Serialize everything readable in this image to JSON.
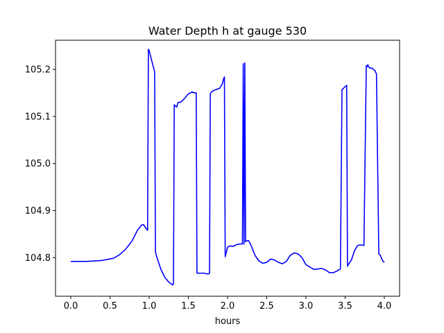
{
  "chart_data": {
    "type": "line",
    "title": "Water Depth h at gauge 530",
    "xlabel": "hours",
    "ylabel": "",
    "xlim": [
      -0.195,
      4.195
    ],
    "ylim": [
      104.718,
      105.262
    ],
    "x_ticks": [
      0.0,
      0.5,
      1.0,
      1.5,
      2.0,
      2.5,
      3.0,
      3.5,
      4.0
    ],
    "x_tick_labels": [
      "0.0",
      "0.5",
      "1.0",
      "1.5",
      "2.0",
      "2.5",
      "3.0",
      "3.5",
      "4.0"
    ],
    "y_ticks": [
      104.8,
      104.9,
      105.0,
      105.1,
      105.2
    ],
    "y_tick_labels": [
      "104.8",
      "104.9",
      "105.0",
      "105.1",
      "105.2"
    ],
    "grid": false,
    "series": [
      {
        "color": "#0000ff",
        "x": [
          0.0,
          0.2,
          0.4,
          0.55,
          0.62,
          0.7,
          0.78,
          0.85,
          0.9,
          0.93,
          0.96,
          0.98,
          0.99,
          1.0,
          1.03,
          1.07,
          1.08,
          1.1,
          1.15,
          1.2,
          1.25,
          1.3,
          1.31,
          1.32,
          1.33,
          1.35,
          1.37,
          1.4,
          1.45,
          1.5,
          1.55,
          1.58,
          1.6,
          1.61,
          1.65,
          1.7,
          1.75,
          1.77,
          1.78,
          1.8,
          1.82,
          1.85,
          1.9,
          1.93,
          1.95,
          1.96,
          1.97,
          2.0,
          2.03,
          2.07,
          2.12,
          2.16,
          2.19,
          2.2,
          2.21,
          2.22,
          2.23,
          2.25,
          2.27,
          2.3,
          2.35,
          2.4,
          2.45,
          2.5,
          2.55,
          2.6,
          2.65,
          2.7,
          2.75,
          2.8,
          2.85,
          2.9,
          2.95,
          3.0,
          3.05,
          3.1,
          3.15,
          3.2,
          3.25,
          3.3,
          3.35,
          3.4,
          3.44,
          3.46,
          3.47,
          3.49,
          3.52,
          3.53,
          3.54,
          3.58,
          3.62,
          3.66,
          3.7,
          3.74,
          3.77,
          3.78,
          3.79,
          3.8,
          3.82,
          3.84,
          3.86,
          3.88,
          3.9,
          3.93,
          3.95,
          3.96,
          3.98,
          4.0
        ],
        "y": [
          104.792,
          104.792,
          104.794,
          104.799,
          104.806,
          104.818,
          104.835,
          104.858,
          104.869,
          104.87,
          104.862,
          104.858,
          105.243,
          105.24,
          105.22,
          105.195,
          104.812,
          104.8,
          104.775,
          104.758,
          104.748,
          104.742,
          104.745,
          105.125,
          105.123,
          105.12,
          105.13,
          105.13,
          105.138,
          105.148,
          105.152,
          105.15,
          105.15,
          104.767,
          104.767,
          104.767,
          104.765,
          104.767,
          105.148,
          105.153,
          105.155,
          105.157,
          105.16,
          105.168,
          105.18,
          105.184,
          104.802,
          104.822,
          104.825,
          104.824,
          104.828,
          104.829,
          104.829,
          105.212,
          104.829,
          105.214,
          104.834,
          104.836,
          104.836,
          104.826,
          104.805,
          104.793,
          104.788,
          104.79,
          104.797,
          104.795,
          104.79,
          104.787,
          104.792,
          104.805,
          104.81,
          104.808,
          104.8,
          104.785,
          104.78,
          104.775,
          104.776,
          104.777,
          104.774,
          104.768,
          104.768,
          104.772,
          104.776,
          105.157,
          105.158,
          105.162,
          105.166,
          104.782,
          104.785,
          104.795,
          104.815,
          104.826,
          104.827,
          104.826,
          105.208,
          105.206,
          105.21,
          105.205,
          105.203,
          105.203,
          105.2,
          105.198,
          105.19,
          104.808,
          104.805,
          104.8,
          104.793,
          104.79
        ]
      }
    ]
  }
}
